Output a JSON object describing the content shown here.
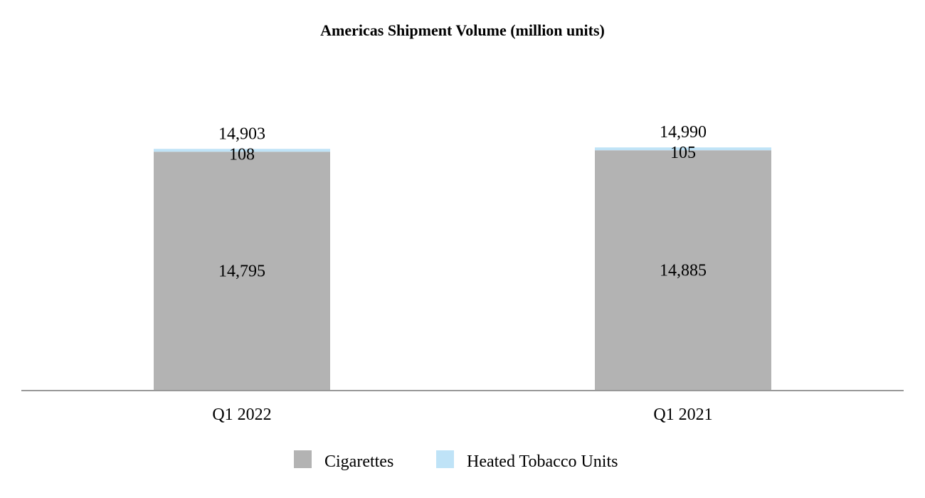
{
  "chart_data": {
    "type": "bar",
    "stacked": true,
    "title": "Americas Shipment Volume (million units)",
    "xlabel": "",
    "ylabel": "",
    "categories": [
      "Q1 2022",
      "Q1 2021"
    ],
    "series": [
      {
        "name": "Cigarettes",
        "values": [
          14795,
          14885
        ],
        "value_labels": [
          "14,795",
          "14,885"
        ],
        "color": "#b3b3b3"
      },
      {
        "name": "Heated Tobacco Units",
        "values": [
          108,
          105
        ],
        "value_labels": [
          "108",
          "105"
        ],
        "color": "#bfe3f7"
      }
    ],
    "totals": [
      14903,
      14990
    ],
    "total_labels": [
      "14,903",
      "14,990"
    ],
    "ylim": [
      0,
      16000
    ],
    "grid": false,
    "legend_position": "bottom"
  },
  "colors": {
    "axis": "#999999"
  }
}
